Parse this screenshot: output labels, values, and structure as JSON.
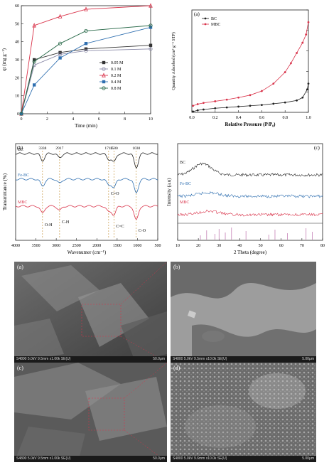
{
  "kinetics": {
    "chart_data": {
      "type": "line",
      "xlabel": "Time (min)",
      "ylabel": "qt (mg g⁻¹)",
      "xlim": [
        0,
        10
      ],
      "ylim": [
        0,
        60
      ],
      "xticks": [
        0,
        2,
        4,
        6,
        8,
        10
      ],
      "yticks": [
        0,
        10,
        20,
        30,
        40,
        50,
        60
      ],
      "x": [
        0,
        1,
        3,
        5,
        10
      ],
      "legend_position": "right",
      "series": [
        {
          "name": "0.05 M",
          "color": "#333333",
          "values": [
            0,
            30,
            34,
            36,
            38
          ]
        },
        {
          "name": "0.1 M",
          "color": "#8a8aa8",
          "values": [
            0,
            27,
            33,
            35,
            36
          ]
        },
        {
          "name": "0.2 M",
          "color": "#d9334a",
          "values": [
            0,
            49,
            54,
            58,
            60
          ]
        },
        {
          "name": "0.4 M",
          "color": "#2f6fb0",
          "values": [
            0,
            16,
            31,
            39,
            48
          ]
        },
        {
          "name": "0.8 M",
          "color": "#2a6a4a",
          "values": [
            0,
            29,
            39,
            46,
            49
          ]
        }
      ]
    }
  },
  "bet": {
    "label": "(a)",
    "chart_data": {
      "type": "line",
      "xlabel": "Relative Pressure (P/P₀)",
      "ylabel": "Quantity Adsorbed (cm³ g⁻¹ STP)",
      "xlim": [
        0,
        1.0
      ],
      "ylim": [
        0,
        25
      ],
      "xticks": [
        0.0,
        0.2,
        0.4,
        0.6,
        0.8,
        1.0
      ],
      "yticks": [
        0,
        5,
        10,
        15,
        20,
        25
      ],
      "legend_position": "top-left",
      "series": [
        {
          "name": "BC",
          "color": "#222222",
          "x": [
            0.01,
            0.05,
            0.1,
            0.2,
            0.3,
            0.4,
            0.5,
            0.6,
            0.7,
            0.8,
            0.9,
            0.95,
            0.99,
            1.0
          ],
          "values": [
            0.2,
            0.5,
            0.7,
            1.0,
            1.2,
            1.4,
            1.6,
            1.8,
            2.1,
            2.4,
            2.9,
            3.6,
            5.6,
            7.0
          ]
        },
        {
          "name": "MBC",
          "color": "#d9334a",
          "x": [
            0.01,
            0.05,
            0.1,
            0.2,
            0.3,
            0.4,
            0.5,
            0.6,
            0.7,
            0.8,
            0.85,
            0.9,
            0.95,
            0.98,
            1.0
          ],
          "values": [
            1.6,
            2.0,
            2.3,
            2.7,
            3.1,
            3.6,
            4.2,
            5.2,
            7.0,
            9.8,
            12.0,
            14.5,
            17.0,
            19.0,
            22.0
          ]
        }
      ]
    }
  },
  "ftir": {
    "label": "(b)",
    "chart_data": {
      "type": "line",
      "xlabel": "Wavenumer (cm⁻¹)",
      "ylabel": "Transmittance (%)",
      "xlim": [
        4000,
        500
      ],
      "xticks": [
        4000,
        3500,
        3000,
        2500,
        2000,
        1500,
        1000,
        500
      ],
      "peak_lines": [
        3338,
        2917,
        1710,
        1580,
        1030
      ],
      "peak_labels": [
        "3338",
        "2917",
        "1710",
        "1580",
        "1030"
      ],
      "annotations": [
        "O-H",
        "C-H",
        "C=O",
        "C=C",
        "C-O"
      ],
      "series": [
        {
          "name": "BC",
          "color": "#222222"
        },
        {
          "name": "Fe-BC",
          "color": "#2f6fb0"
        },
        {
          "name": "MBC",
          "color": "#d9334a"
        }
      ]
    }
  },
  "xrd": {
    "label": "(c)",
    "chart_data": {
      "type": "line",
      "xlabel": "2 Theta (degree)",
      "ylabel": "Intensity (a.u)",
      "xlim": [
        10,
        80
      ],
      "xticks": [
        10,
        20,
        30,
        40,
        50,
        60,
        70,
        80
      ],
      "reference_peaks": [
        21,
        24,
        28,
        30,
        33,
        36,
        43,
        54,
        57,
        63,
        72,
        75
      ],
      "series": [
        {
          "name": "BC",
          "color": "#222222"
        },
        {
          "name": "Fe-BC",
          "color": "#2f6fb0"
        },
        {
          "name": "MBC",
          "color": "#d9334a"
        }
      ]
    }
  },
  "sem": [
    {
      "label": "(a)",
      "info": "S4800 5.0kV 9.5mm x1.00k SE(U)",
      "scale": "50.0μm"
    },
    {
      "label": "(b)",
      "info": "S4800 5.0kV 9.5mm x10.0k SE(U)",
      "scale": "5.00μm"
    },
    {
      "label": "(c)",
      "info": "S4800 5.0kV 9.5mm x1.00k SE(U)",
      "scale": "50.0μm"
    },
    {
      "label": "(d)",
      "info": "S4800 5.0kV 9.6mm x10.0k SE(U)",
      "scale": "5.00μm"
    }
  ]
}
